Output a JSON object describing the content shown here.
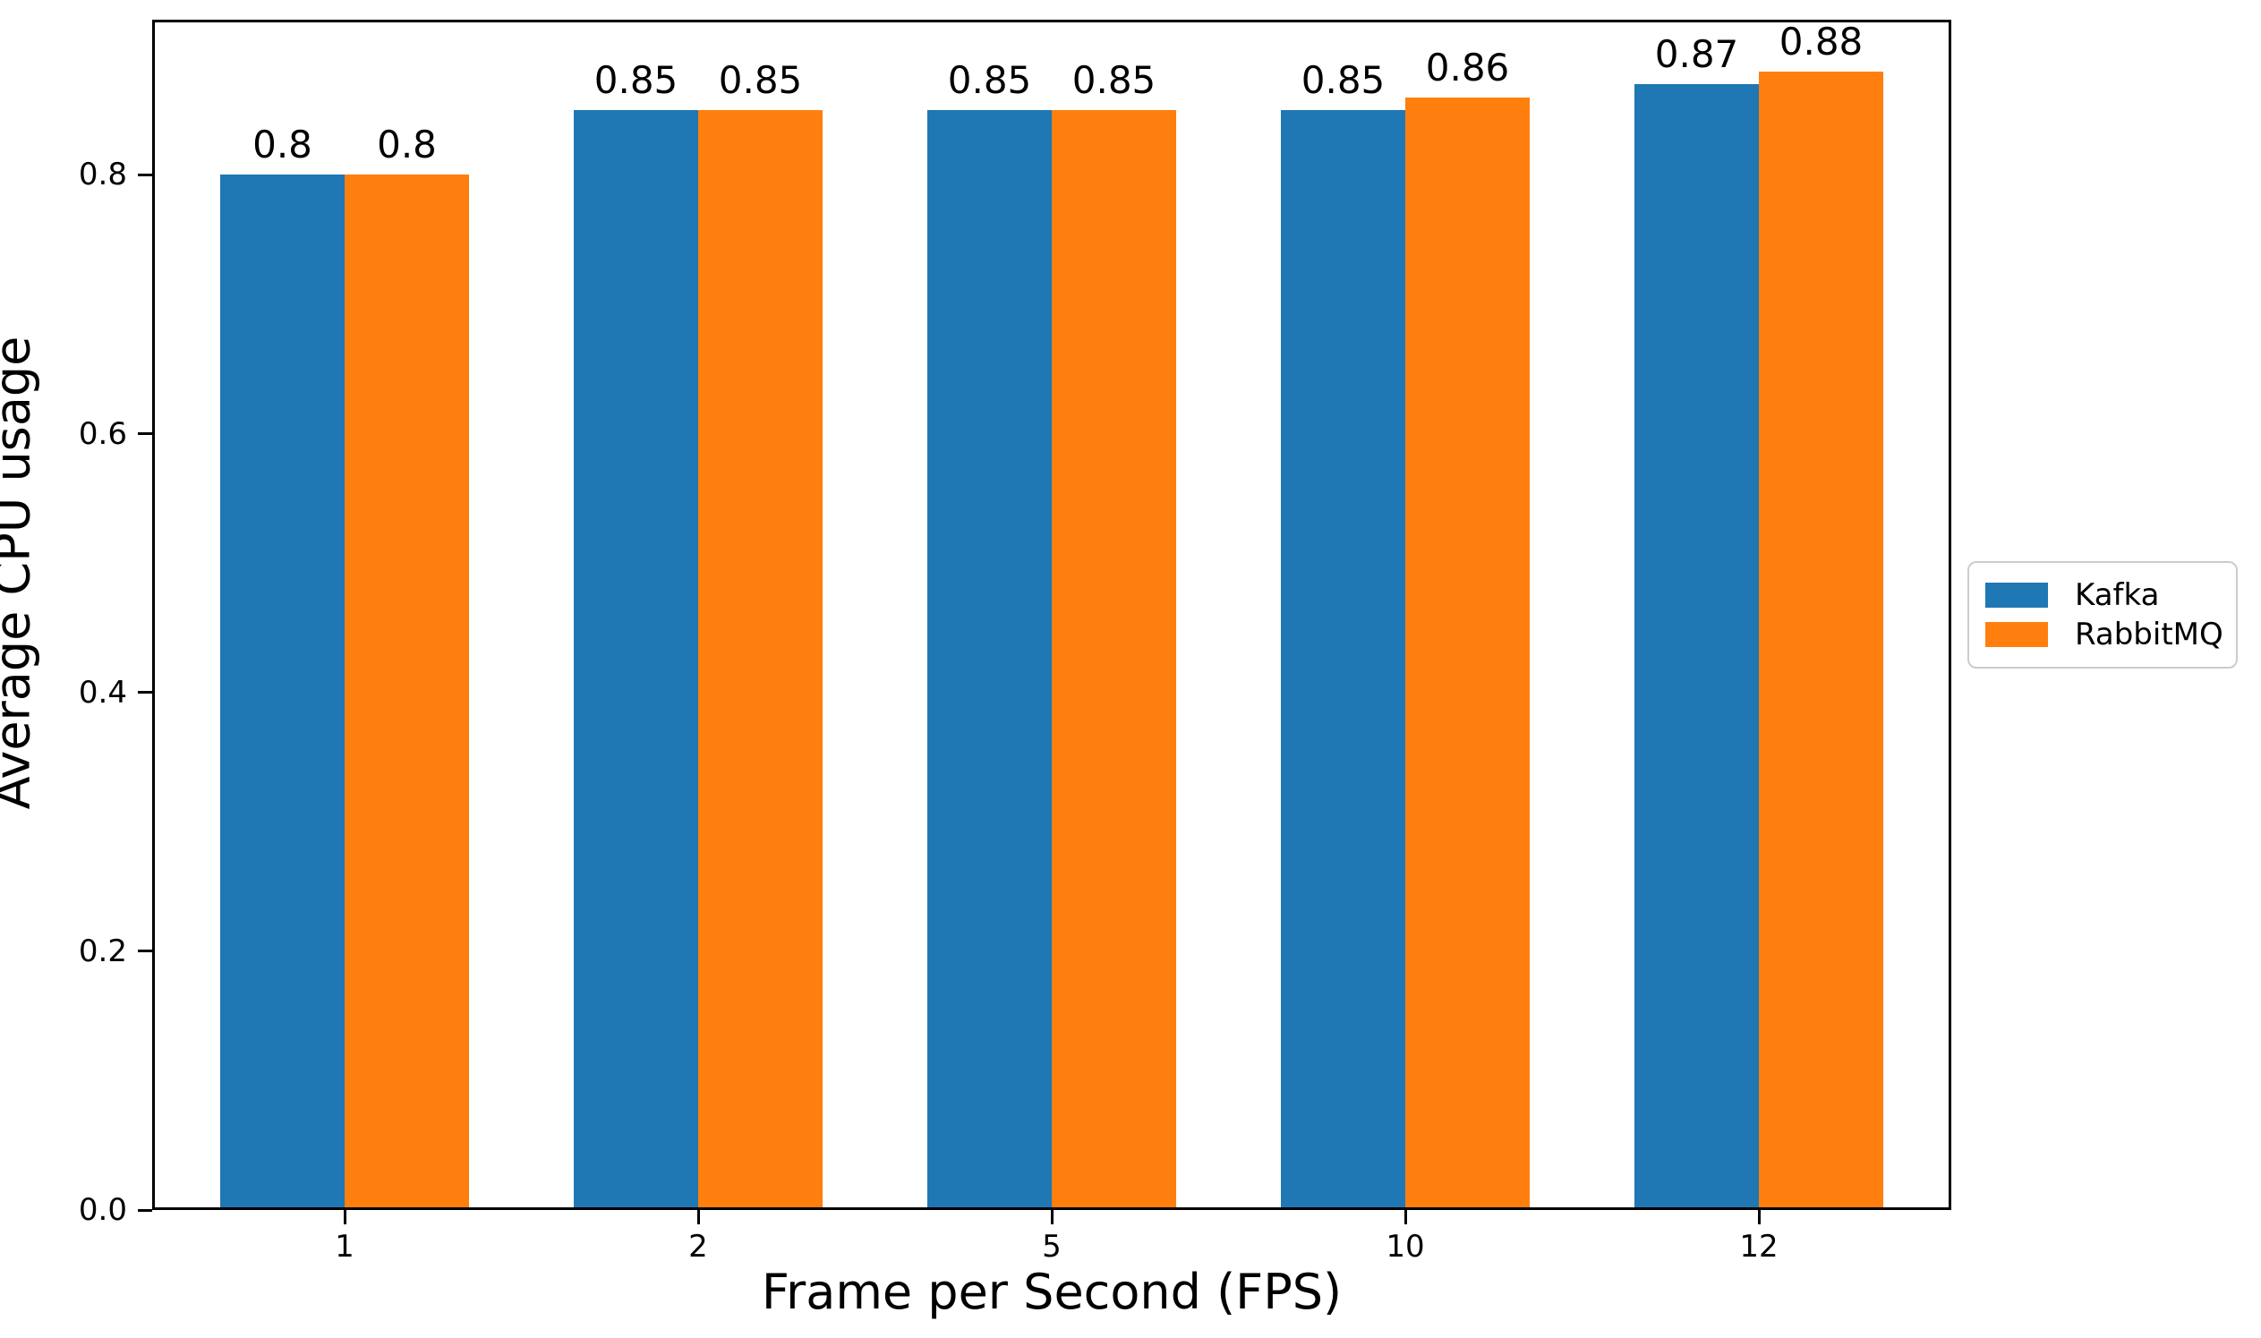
{
  "chart_data": {
    "type": "bar",
    "title": "",
    "xlabel": "Frame per Second (FPS)",
    "ylabel": "Average CPU usage",
    "categories": [
      "1",
      "2",
      "5",
      "10",
      "12"
    ],
    "series": [
      {
        "name": "Kafka",
        "color": "#1f77b4",
        "values": [
          0.8,
          0.85,
          0.85,
          0.85,
          0.87
        ],
        "labels": [
          "0.8",
          "0.85",
          "0.85",
          "0.85",
          "0.87"
        ]
      },
      {
        "name": "RabbitMQ",
        "color": "#ff7f0e",
        "values": [
          0.8,
          0.85,
          0.85,
          0.86,
          0.88
        ],
        "labels": [
          "0.8",
          "0.85",
          "0.85",
          "0.86",
          "0.88"
        ]
      }
    ],
    "ylim": [
      0,
      0.92
    ],
    "yticks": [
      0.0,
      0.2,
      0.4,
      0.6,
      0.8
    ],
    "ytick_labels": [
      "0.0",
      "0.2",
      "0.4",
      "0.6",
      "0.8"
    ],
    "grid": false,
    "legend_position": "outside-right-center",
    "legend_entries": [
      "Kafka",
      "RabbitMQ"
    ]
  }
}
